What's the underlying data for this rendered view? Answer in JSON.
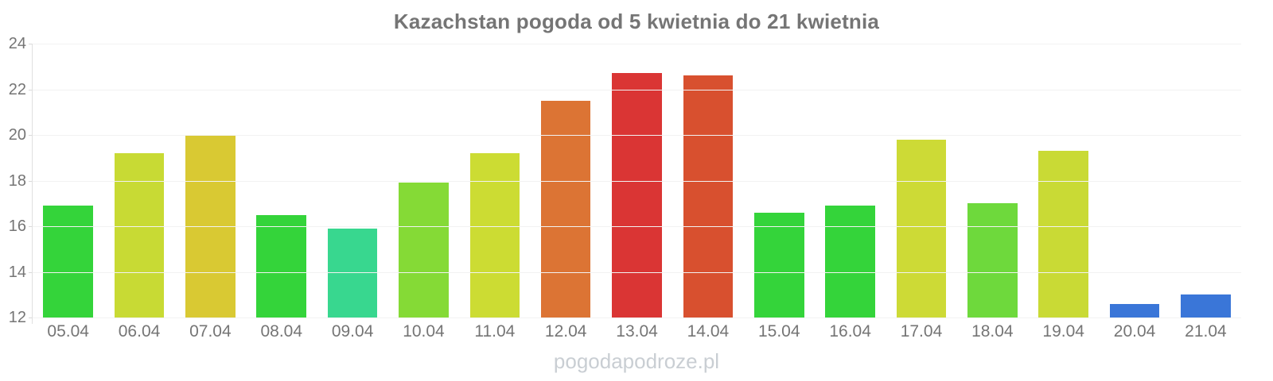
{
  "chart_data": {
    "type": "bar",
    "title": "Kazachstan pogoda od 5 kwietnia do 21 kwietnia",
    "categories": [
      "05.04",
      "06.04",
      "07.04",
      "08.04",
      "09.04",
      "10.04",
      "11.04",
      "12.04",
      "13.04",
      "14.04",
      "15.04",
      "16.04",
      "17.04",
      "18.04",
      "19.04",
      "20.04",
      "21.04"
    ],
    "values": [
      16.9,
      19.2,
      20.0,
      16.5,
      15.9,
      17.9,
      19.2,
      21.5,
      22.7,
      22.6,
      16.6,
      16.9,
      19.8,
      17.0,
      19.3,
      12.6,
      13.0
    ],
    "bar_colors": [
      "#34d43a",
      "#c8da34",
      "#d9c933",
      "#34d43a",
      "#38d78f",
      "#85da36",
      "#ccdc33",
      "#dc7434",
      "#da3534",
      "#d8502f",
      "#34d43a",
      "#34d43a",
      "#cdda36",
      "#6ed93c",
      "#c9da35",
      "#3a76d8",
      "#3a76d8"
    ],
    "xlabel": "",
    "ylabel": "",
    "ylim": [
      12,
      24
    ],
    "ytick_step": 2,
    "grid": true,
    "legend": false
  },
  "watermark": {
    "text": "pogodapodroze.pl"
  },
  "style": {
    "title_color": "#757575",
    "axis_label_color": "#757575",
    "gridline_color": "#f2f2f2",
    "axis_line_color": "#e0e0e0",
    "watermark_color": "#c9ced3",
    "background": "#ffffff"
  }
}
